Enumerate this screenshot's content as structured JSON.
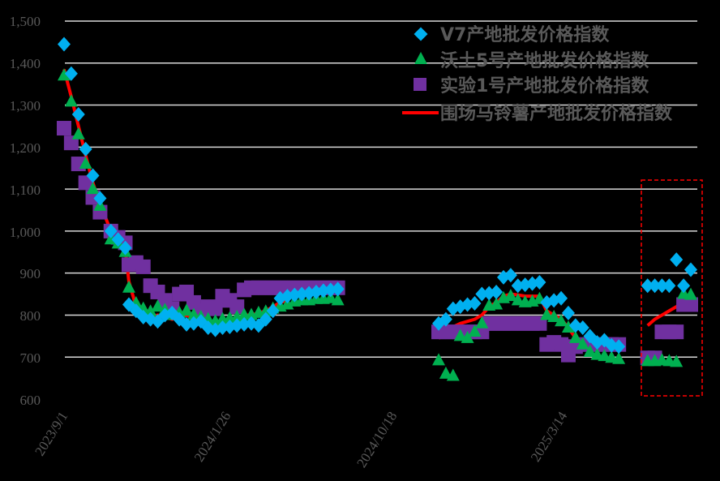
{
  "chart_data": {
    "type": "scatter",
    "title": "",
    "xlabel": "",
    "ylabel": "",
    "ylim": [
      600,
      1500
    ],
    "yticks": [
      "1,500",
      "1,400",
      "1,300",
      "1,200",
      "1,100",
      "1,000",
      "900",
      "800",
      "700",
      "600"
    ],
    "xticks": [
      "2023/9/1",
      "2024/1/26",
      "2024/10/18",
      "2025/3/14"
    ],
    "grid": true,
    "legend_position": "top-right",
    "colors": {
      "v7": "#00B0F0",
      "wotu5": "#00B050",
      "shiyan1": "#7030A0",
      "weichang": "#FF0000",
      "highlight_box": "#FF0000",
      "gridline": "#D9D9D9",
      "background": "#000000"
    },
    "series": [
      {
        "name": "V7产地批发价格指数",
        "marker": "diamond",
        "points": [
          [
            0,
            1445
          ],
          [
            2,
            1375
          ],
          [
            4,
            1278
          ],
          [
            6,
            1195
          ],
          [
            8,
            1132
          ],
          [
            10,
            1078
          ],
          [
            13,
            1000
          ],
          [
            15,
            980
          ],
          [
            17,
            960
          ],
          [
            18,
            825
          ],
          [
            20,
            810
          ],
          [
            22,
            795
          ],
          [
            24,
            790
          ],
          [
            26,
            785
          ],
          [
            28,
            800
          ],
          [
            30,
            805
          ],
          [
            32,
            790
          ],
          [
            34,
            778
          ],
          [
            36,
            780
          ],
          [
            38,
            785
          ],
          [
            40,
            770
          ],
          [
            42,
            765
          ],
          [
            44,
            770
          ],
          [
            46,
            772
          ],
          [
            48,
            775
          ],
          [
            50,
            778
          ],
          [
            52,
            780
          ],
          [
            54,
            775
          ],
          [
            56,
            790
          ],
          [
            58,
            810
          ],
          [
            60,
            840
          ],
          [
            62,
            845
          ],
          [
            64,
            848
          ],
          [
            66,
            850
          ],
          [
            68,
            852
          ],
          [
            70,
            855
          ],
          [
            72,
            858
          ],
          [
            74,
            860
          ],
          [
            76,
            862
          ],
          [
            104,
            780
          ],
          [
            106,
            790
          ],
          [
            108,
            815
          ],
          [
            110,
            820
          ],
          [
            112,
            825
          ],
          [
            114,
            828
          ],
          [
            116,
            850
          ],
          [
            118,
            852
          ],
          [
            120,
            855
          ],
          [
            122,
            890
          ],
          [
            124,
            895
          ],
          [
            126,
            870
          ],
          [
            128,
            872
          ],
          [
            130,
            875
          ],
          [
            132,
            878
          ],
          [
            134,
            830
          ],
          [
            136,
            835
          ],
          [
            138,
            840
          ],
          [
            140,
            805
          ],
          [
            142,
            775
          ],
          [
            144,
            770
          ],
          [
            146,
            750
          ],
          [
            148,
            735
          ],
          [
            150,
            740
          ],
          [
            152,
            728
          ],
          [
            154,
            725
          ],
          [
            162,
            870
          ],
          [
            164,
            870
          ],
          [
            166,
            870
          ],
          [
            168,
            870
          ],
          [
            170,
            932
          ],
          [
            172,
            870
          ],
          [
            174,
            908
          ]
        ]
      },
      {
        "name": "沃土5号产地批发价格指数",
        "marker": "triangle",
        "points": [
          [
            0,
            1370
          ],
          [
            2,
            1308
          ],
          [
            4,
            1230
          ],
          [
            6,
            1160
          ],
          [
            8,
            1100
          ],
          [
            10,
            1060
          ],
          [
            13,
            980
          ],
          [
            15,
            970
          ],
          [
            17,
            950
          ],
          [
            18,
            865
          ],
          [
            20,
            828
          ],
          [
            22,
            815
          ],
          [
            24,
            808
          ],
          [
            26,
            820
          ],
          [
            28,
            812
          ],
          [
            30,
            800
          ],
          [
            32,
            805
          ],
          [
            34,
            810
          ],
          [
            36,
            800
          ],
          [
            38,
            795
          ],
          [
            40,
            790
          ],
          [
            42,
            785
          ],
          [
            44,
            790
          ],
          [
            46,
            792
          ],
          [
            48,
            795
          ],
          [
            50,
            800
          ],
          [
            52,
            800
          ],
          [
            54,
            805
          ],
          [
            56,
            808
          ],
          [
            58,
            815
          ],
          [
            60,
            820
          ],
          [
            62,
            825
          ],
          [
            64,
            832
          ],
          [
            66,
            835
          ],
          [
            68,
            835
          ],
          [
            70,
            838
          ],
          [
            72,
            838
          ],
          [
            74,
            840
          ],
          [
            76,
            835
          ],
          [
            104,
            692
          ],
          [
            106,
            660
          ],
          [
            108,
            655
          ],
          [
            110,
            750
          ],
          [
            112,
            745
          ],
          [
            114,
            760
          ],
          [
            116,
            780
          ],
          [
            118,
            822
          ],
          [
            120,
            825
          ],
          [
            122,
            840
          ],
          [
            124,
            845
          ],
          [
            126,
            835
          ],
          [
            128,
            830
          ],
          [
            130,
            832
          ],
          [
            132,
            838
          ],
          [
            134,
            800
          ],
          [
            136,
            795
          ],
          [
            138,
            785
          ],
          [
            140,
            770
          ],
          [
            142,
            745
          ],
          [
            144,
            730
          ],
          [
            146,
            712
          ],
          [
            148,
            705
          ],
          [
            150,
            702
          ],
          [
            152,
            698
          ],
          [
            154,
            695
          ],
          [
            162,
            690
          ],
          [
            164,
            690
          ],
          [
            166,
            692
          ],
          [
            168,
            690
          ],
          [
            170,
            688
          ],
          [
            172,
            850
          ],
          [
            174,
            848
          ]
        ]
      },
      {
        "name": "实验1号产地批发价格指数",
        "marker": "square",
        "points": [
          [
            0,
            1245
          ],
          [
            2,
            1210
          ],
          [
            4,
            1160
          ],
          [
            6,
            1115
          ],
          [
            8,
            1080
          ],
          [
            10,
            1045
          ],
          [
            13,
            1000
          ],
          [
            15,
            985
          ],
          [
            17,
            972
          ],
          [
            18,
            920
          ],
          [
            20,
            925
          ],
          [
            22,
            915
          ],
          [
            24,
            870
          ],
          [
            26,
            855
          ],
          [
            28,
            835
          ],
          [
            30,
            815
          ],
          [
            32,
            850
          ],
          [
            34,
            855
          ],
          [
            36,
            830
          ],
          [
            38,
            810
          ],
          [
            40,
            820
          ],
          [
            42,
            815
          ],
          [
            44,
            845
          ],
          [
            46,
            835
          ],
          [
            48,
            820
          ],
          [
            50,
            860
          ],
          [
            52,
            865
          ],
          [
            54,
            865
          ],
          [
            56,
            865
          ],
          [
            58,
            865
          ],
          [
            60,
            865
          ],
          [
            62,
            865
          ],
          [
            64,
            865
          ],
          [
            66,
            865
          ],
          [
            68,
            865
          ],
          [
            70,
            865
          ],
          [
            72,
            865
          ],
          [
            74,
            865
          ],
          [
            76,
            865
          ],
          [
            104,
            760
          ],
          [
            106,
            760
          ],
          [
            108,
            760
          ],
          [
            110,
            760
          ],
          [
            112,
            760
          ],
          [
            114,
            760
          ],
          [
            116,
            760
          ],
          [
            118,
            780
          ],
          [
            120,
            780
          ],
          [
            122,
            780
          ],
          [
            124,
            780
          ],
          [
            126,
            780
          ],
          [
            128,
            780
          ],
          [
            130,
            780
          ],
          [
            132,
            780
          ],
          [
            134,
            730
          ],
          [
            136,
            735
          ],
          [
            138,
            730
          ],
          [
            140,
            705
          ],
          [
            142,
            725
          ],
          [
            144,
            730
          ],
          [
            146,
            730
          ],
          [
            148,
            730
          ],
          [
            150,
            730
          ],
          [
            152,
            730
          ],
          [
            154,
            730
          ],
          [
            162,
            698
          ],
          [
            164,
            698
          ],
          [
            166,
            760
          ],
          [
            168,
            760
          ],
          [
            170,
            760
          ],
          [
            172,
            825
          ],
          [
            174,
            825
          ]
        ]
      },
      {
        "name": "围场马铃薯产地批发价格指数",
        "marker": "line",
        "points": [
          [
            0,
            1385
          ],
          [
            2,
            1320
          ],
          [
            4,
            1250
          ],
          [
            6,
            1180
          ],
          [
            8,
            1115
          ],
          [
            10,
            1065
          ],
          [
            13,
            1000
          ],
          [
            15,
            975
          ],
          [
            17,
            955
          ],
          [
            18,
            880
          ],
          [
            20,
            820
          ],
          [
            22,
            800
          ],
          [
            24,
            795
          ],
          [
            26,
            800
          ],
          [
            28,
            795
          ],
          [
            30,
            790
          ],
          [
            32,
            795
          ],
          [
            34,
            800
          ],
          [
            36,
            790
          ],
          [
            38,
            785
          ],
          [
            40,
            780
          ],
          [
            42,
            778
          ],
          [
            44,
            785
          ],
          [
            46,
            788
          ],
          [
            48,
            790
          ],
          [
            50,
            800
          ],
          [
            52,
            800
          ],
          [
            54,
            805
          ],
          [
            56,
            810
          ],
          [
            58,
            820
          ],
          [
            60,
            830
          ],
          [
            62,
            835
          ],
          [
            104,
            745
          ],
          [
            106,
            755
          ],
          [
            108,
            772
          ],
          [
            110,
            780
          ],
          [
            112,
            785
          ],
          [
            114,
            790
          ],
          [
            116,
            800
          ],
          [
            118,
            820
          ],
          [
            120,
            830
          ],
          [
            122,
            845
          ],
          [
            124,
            850
          ],
          [
            126,
            848
          ],
          [
            128,
            845
          ],
          [
            130,
            845
          ],
          [
            132,
            845
          ],
          [
            134,
            810
          ],
          [
            136,
            800
          ],
          [
            138,
            790
          ],
          [
            140,
            770
          ],
          [
            142,
            745
          ],
          [
            144,
            735
          ],
          [
            162,
            775
          ],
          [
            164,
            790
          ],
          [
            166,
            800
          ],
          [
            168,
            810
          ],
          [
            170,
            820
          ],
          [
            172,
            830
          ],
          [
            174,
            848
          ]
        ]
      }
    ],
    "annotations": [
      {
        "type": "dashed-rectangle",
        "color": "#FF0000",
        "x_range": [
          161,
          176
        ],
        "y_range": [
          608,
          1120
        ]
      }
    ]
  },
  "legend": {
    "items": [
      {
        "label": "V7产地批发价格指数",
        "icon": "diamond-icon",
        "color": "#00B0F0"
      },
      {
        "label": "沃土5号产地批发价格指数",
        "icon": "triangle-icon",
        "color": "#00B050"
      },
      {
        "label": "实验1号产地批发价格指数",
        "icon": "square-icon",
        "color": "#7030A0"
      },
      {
        "label": "围场马铃薯产地批发价格指数",
        "icon": "line-icon",
        "color": "#FF0000"
      }
    ]
  },
  "axis": {
    "y_labels": [
      "1,500",
      "1,400",
      "1,300",
      "1,200",
      "1,100",
      "1,000",
      "900",
      "800",
      "700",
      "600"
    ],
    "x_labels": [
      "2023/9/1",
      "2024/1/26",
      "2024/10/18",
      "2025/3/14"
    ]
  }
}
